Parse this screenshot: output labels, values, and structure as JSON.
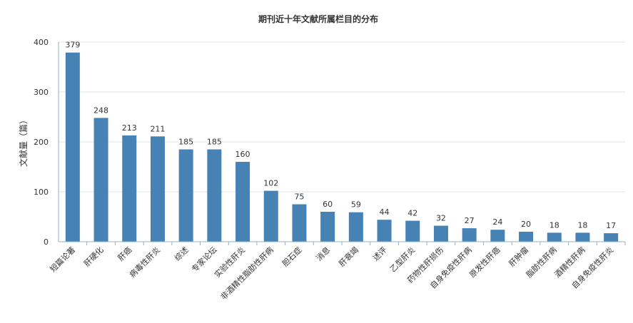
{
  "chart_data": {
    "type": "bar",
    "title": "期刊近十年文献所属栏目的分布",
    "xlabel": "",
    "ylabel": "文献量（篇）",
    "ylim": [
      0,
      400
    ],
    "yticks": [
      0,
      100,
      200,
      300,
      400
    ],
    "grid": true,
    "categories": [
      "短篇论著",
      "肝硬化",
      "肝癌",
      "病毒性肝炎",
      "综述",
      "专家论坛",
      "实验性肝炎",
      "非酒精性脂肪性肝病",
      "胆石症",
      "消息",
      "肝衰竭",
      "述评",
      "乙型肝炎",
      "药物性肝损伤",
      "自身免疫性肝病",
      "原发性肝癌",
      "肝肿瘤",
      "脂肪性肝病",
      "酒精性肝病",
      "自身免疫性肝炎"
    ],
    "values": [
      379,
      248,
      213,
      211,
      185,
      185,
      160,
      102,
      75,
      60,
      59,
      44,
      42,
      32,
      27,
      24,
      20,
      18,
      18,
      17
    ],
    "bar_color": "#4682b4"
  }
}
